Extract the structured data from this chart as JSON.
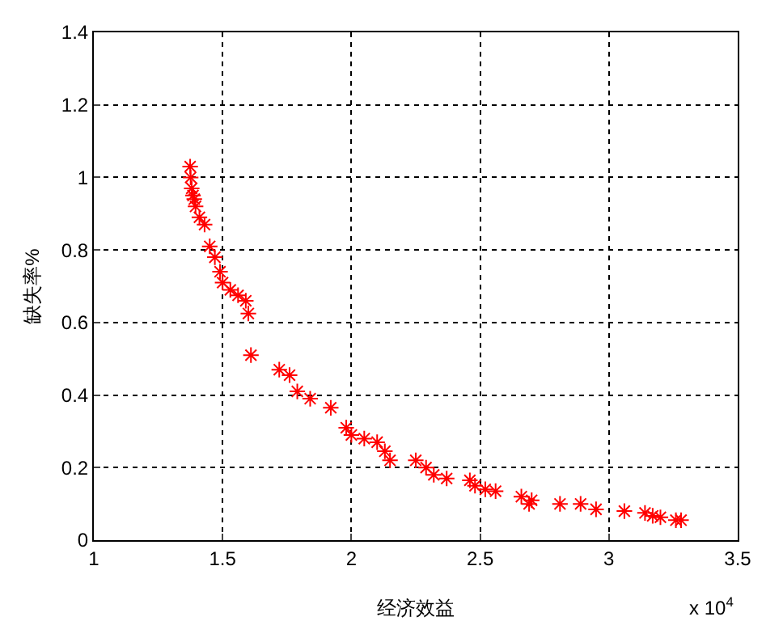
{
  "chart_data": {
    "type": "scatter",
    "xlabel": "经济效益",
    "ylabel": "缺失率%",
    "annotations": [
      "x 10$^{4}$"
    ],
    "x": [
      1.374,
      1.376,
      1.378,
      1.38,
      1.385,
      1.39,
      1.395,
      1.41,
      1.43,
      1.45,
      1.47,
      1.49,
      1.5,
      1.53,
      1.56,
      1.59,
      1.6,
      1.61,
      1.72,
      1.76,
      1.79,
      1.84,
      1.92,
      1.98,
      2.0,
      2.05,
      2.1,
      2.13,
      2.15,
      2.25,
      2.29,
      2.32,
      2.37,
      2.46,
      2.48,
      2.52,
      2.56,
      2.66,
      2.69,
      2.7,
      2.81,
      2.89,
      2.95,
      3.06,
      3.14,
      3.17,
      3.2,
      3.26,
      3.28
    ],
    "series": [
      {
        "color": "#ff0000",
        "values": [
          1.03,
          1.0,
          null,
          0.97,
          0.95,
          0.94,
          0.92,
          0.89,
          0.87,
          0.81,
          0.78,
          0.74,
          0.71,
          0.69,
          0.675,
          0.66,
          0.625,
          0.51,
          0.47,
          0.455,
          0.41,
          0.39,
          0.365,
          0.31,
          0.29,
          0.28,
          0.27,
          0.245,
          0.22,
          0.22,
          0.2,
          0.18,
          0.17,
          0.165,
          0.15,
          0.14,
          0.135,
          0.12,
          0.1,
          0.11,
          0.1,
          0.1,
          0.085,
          0.08,
          0.075,
          0.067,
          0.063,
          0.055,
          0.055
        ]
      }
    ],
    "xlim": [
      1,
      3.5
    ],
    "xticks": [
      1,
      1.5,
      2,
      2.5,
      3,
      3.5
    ],
    "ylim": [
      0,
      1.4
    ],
    "yticks": [
      0,
      0.2,
      0.4,
      0.6,
      0.8,
      1,
      1.2,
      1.4
    ],
    "grid": true,
    "marker": "cross"
  }
}
